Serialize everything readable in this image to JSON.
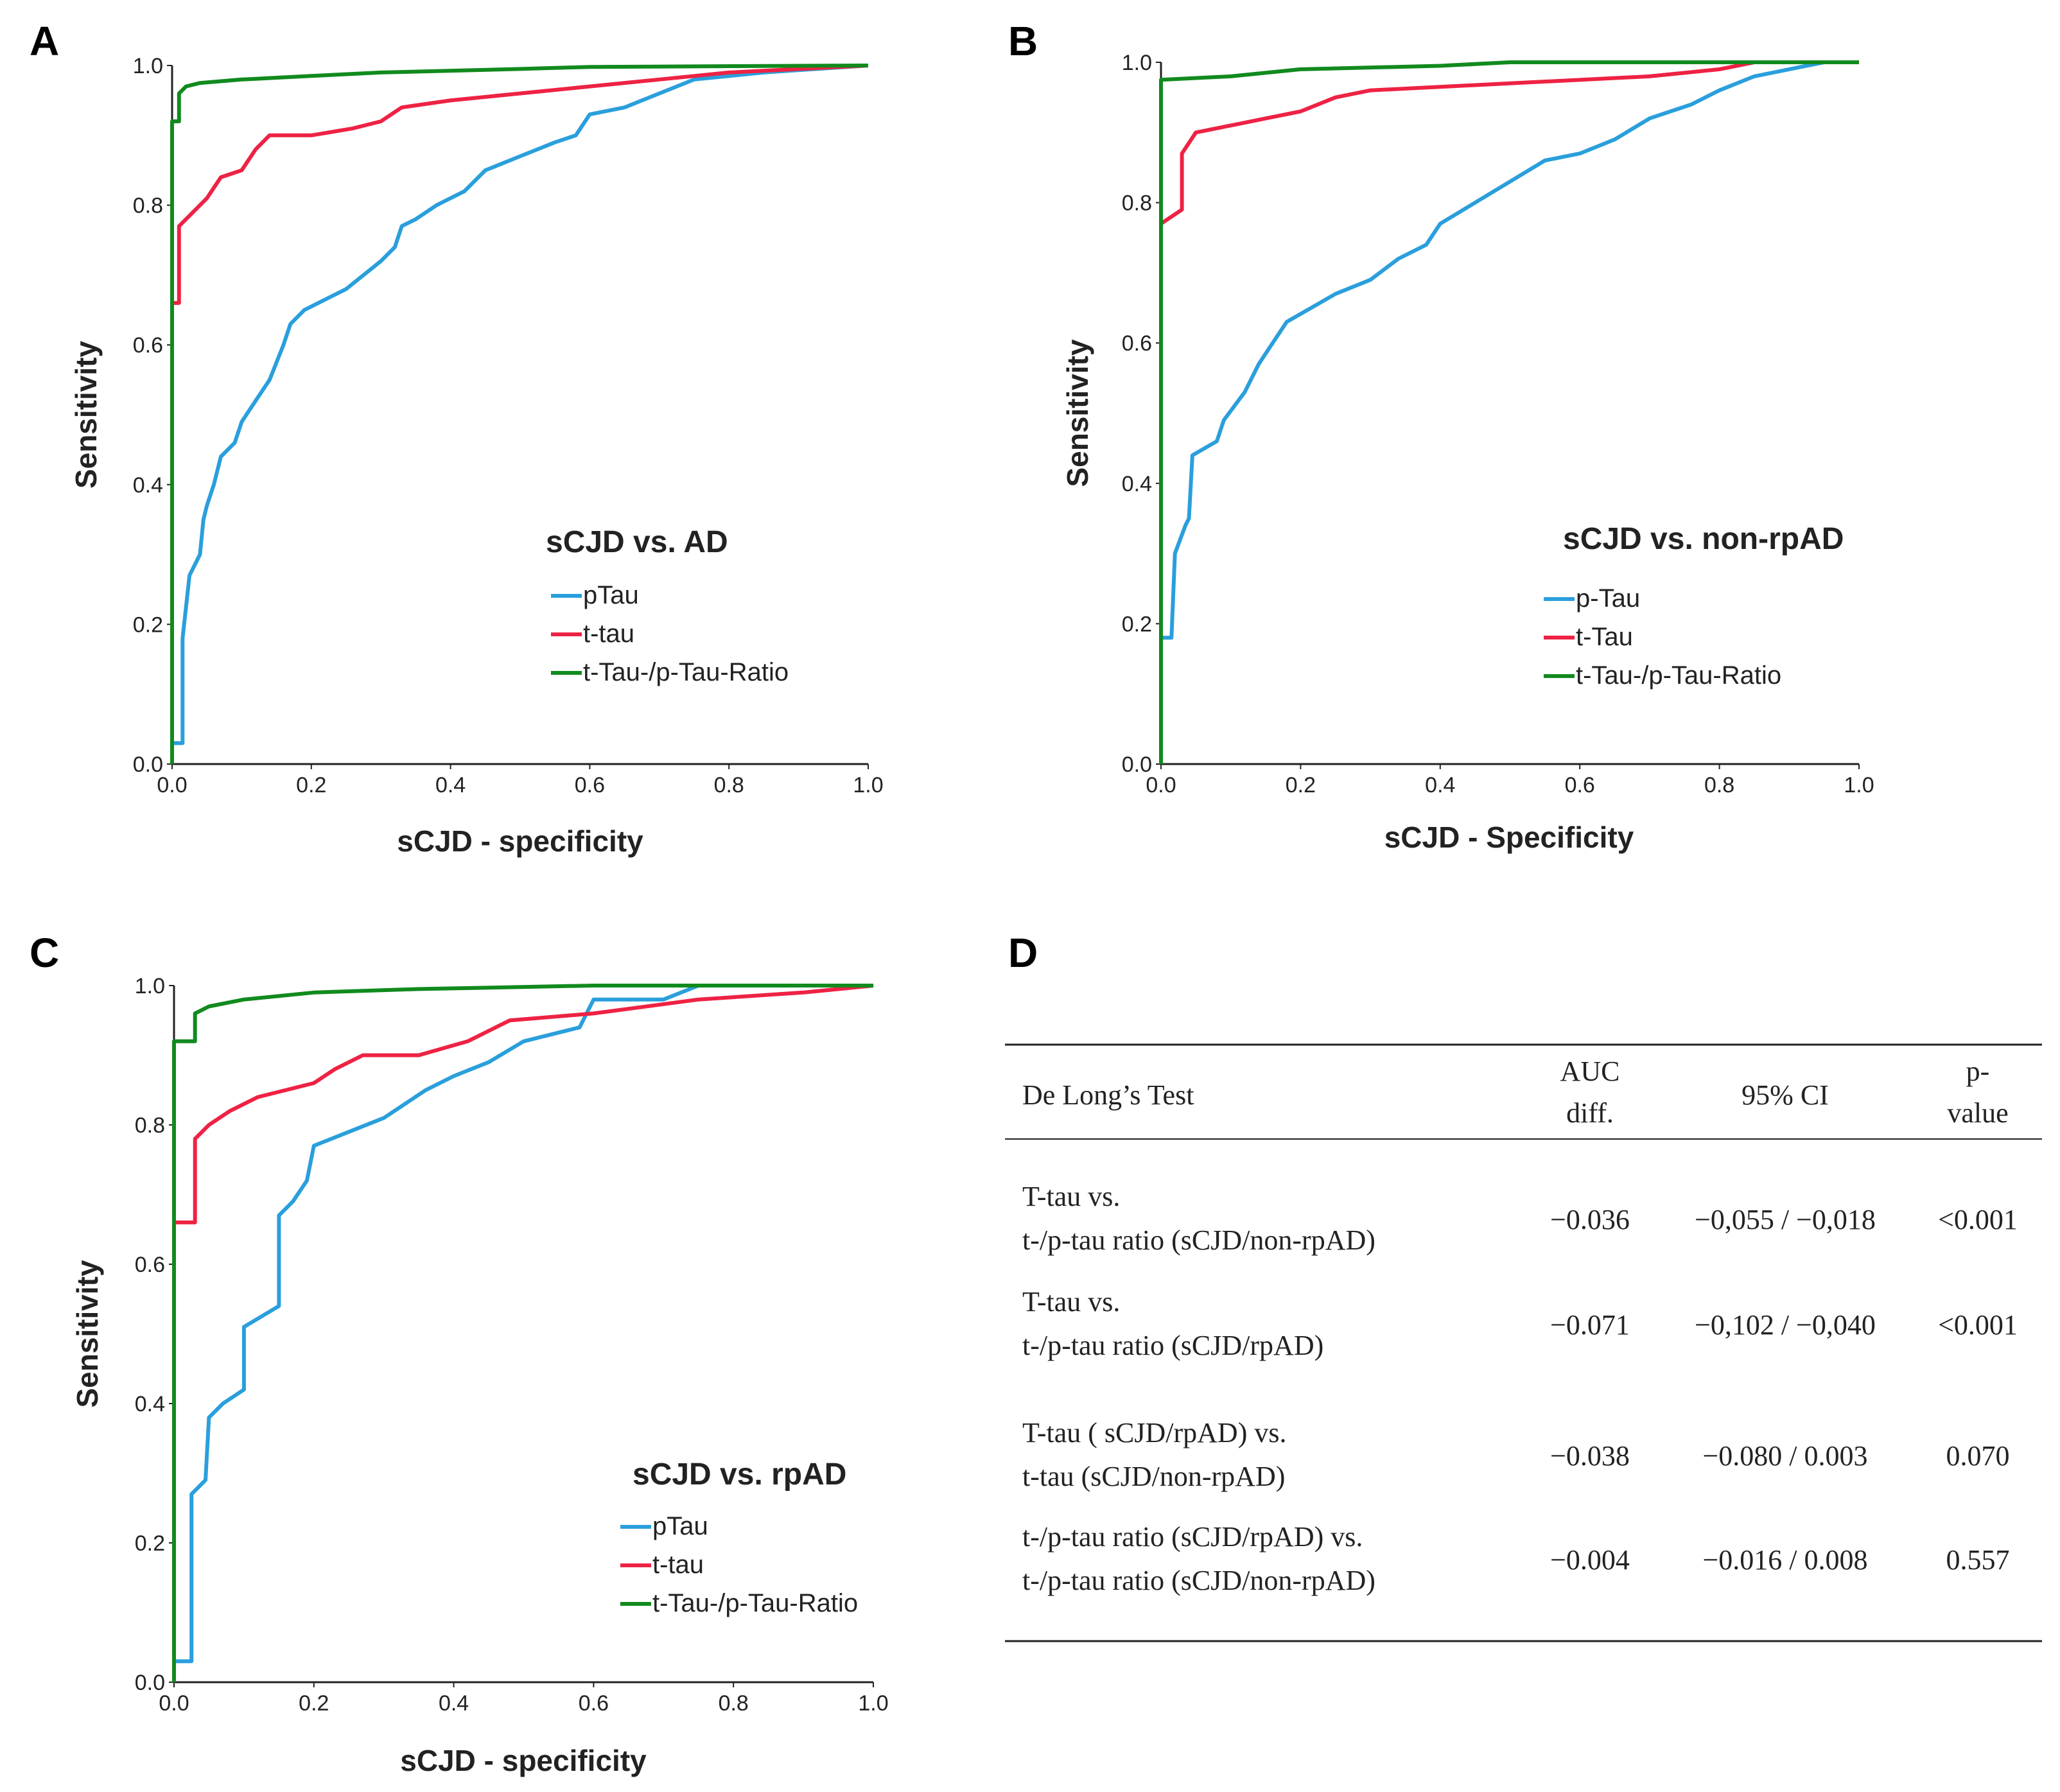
{
  "panels": [
    "A",
    "B",
    "C",
    "D"
  ],
  "series_colors": {
    "p_tau": "#2a9fdc",
    "t_tau": "#ee2244",
    "ratio": "#118a1e"
  },
  "chart_data": [
    {
      "type": "line",
      "panel": "A",
      "title": "sCJD vs. AD",
      "xlabel": "sCJD - specificity",
      "ylabel": "Sensitivity",
      "xlim": [
        0,
        1
      ],
      "ylim": [
        0,
        1
      ],
      "xticks": [
        "0.0",
        "0.2",
        "0.4",
        "0.6",
        "0.8",
        "1.0"
      ],
      "yticks": [
        "0.0",
        "0.2",
        "0.4",
        "0.6",
        "0.8",
        "1.0"
      ],
      "legend": [
        "pTau",
        "t-tau",
        "t-Tau-/p-Tau-Ratio"
      ],
      "series": [
        {
          "name": "pTau",
          "points": [
            [
              0,
              0
            ],
            [
              0,
              0.03
            ],
            [
              0.015,
              0.03
            ],
            [
              0.015,
              0.18
            ],
            [
              0.025,
              0.27
            ],
            [
              0.04,
              0.3
            ],
            [
              0.045,
              0.35
            ],
            [
              0.05,
              0.37
            ],
            [
              0.06,
              0.4
            ],
            [
              0.07,
              0.44
            ],
            [
              0.09,
              0.46
            ],
            [
              0.1,
              0.49
            ],
            [
              0.12,
              0.52
            ],
            [
              0.14,
              0.55
            ],
            [
              0.16,
              0.6
            ],
            [
              0.17,
              0.63
            ],
            [
              0.19,
              0.65
            ],
            [
              0.21,
              0.66
            ],
            [
              0.25,
              0.68
            ],
            [
              0.3,
              0.72
            ],
            [
              0.32,
              0.74
            ],
            [
              0.33,
              0.77
            ],
            [
              0.35,
              0.78
            ],
            [
              0.38,
              0.8
            ],
            [
              0.42,
              0.82
            ],
            [
              0.45,
              0.85
            ],
            [
              0.5,
              0.87
            ],
            [
              0.55,
              0.89
            ],
            [
              0.58,
              0.9
            ],
            [
              0.6,
              0.93
            ],
            [
              0.65,
              0.94
            ],
            [
              0.7,
              0.96
            ],
            [
              0.75,
              0.98
            ],
            [
              0.85,
              0.99
            ],
            [
              1,
              1
            ]
          ]
        },
        {
          "name": "t-tau",
          "points": [
            [
              0,
              0
            ],
            [
              0,
              0.66
            ],
            [
              0.01,
              0.66
            ],
            [
              0.01,
              0.77
            ],
            [
              0.03,
              0.79
            ],
            [
              0.05,
              0.81
            ],
            [
              0.07,
              0.84
            ],
            [
              0.1,
              0.85
            ],
            [
              0.12,
              0.88
            ],
            [
              0.14,
              0.9
            ],
            [
              0.2,
              0.9
            ],
            [
              0.26,
              0.91
            ],
            [
              0.3,
              0.92
            ],
            [
              0.33,
              0.94
            ],
            [
              0.4,
              0.95
            ],
            [
              0.5,
              0.96
            ],
            [
              0.6,
              0.97
            ],
            [
              0.7,
              0.98
            ],
            [
              0.8,
              0.99
            ],
            [
              1,
              1
            ]
          ]
        },
        {
          "name": "t-Tau-/p-Tau-Ratio",
          "points": [
            [
              0,
              0
            ],
            [
              0,
              0.92
            ],
            [
              0.01,
              0.92
            ],
            [
              0.01,
              0.96
            ],
            [
              0.02,
              0.97
            ],
            [
              0.04,
              0.975
            ],
            [
              0.1,
              0.98
            ],
            [
              0.2,
              0.985
            ],
            [
              0.3,
              0.99
            ],
            [
              0.5,
              0.995
            ],
            [
              0.6,
              0.998
            ],
            [
              1,
              1
            ]
          ]
        }
      ]
    },
    {
      "type": "line",
      "panel": "B",
      "title": "sCJD vs. non-rpAD",
      "xlabel": "sCJD - Specificity",
      "ylabel": "Sensitivity",
      "xlim": [
        0,
        1
      ],
      "ylim": [
        0,
        1
      ],
      "xticks": [
        "0.0",
        "0.2",
        "0.4",
        "0.6",
        "0.8",
        "1.0"
      ],
      "yticks": [
        "0.0",
        "0.2",
        "0.4",
        "0.6",
        "0.8",
        "1.0"
      ],
      "legend": [
        "p-Tau",
        "t-Tau",
        "t-Tau-/p-Tau-Ratio"
      ],
      "series": [
        {
          "name": "p-Tau",
          "points": [
            [
              0,
              0
            ],
            [
              0,
              0.18
            ],
            [
              0.015,
              0.18
            ],
            [
              0.02,
              0.3
            ],
            [
              0.035,
              0.34
            ],
            [
              0.04,
              0.35
            ],
            [
              0.045,
              0.44
            ],
            [
              0.08,
              0.46
            ],
            [
              0.09,
              0.49
            ],
            [
              0.12,
              0.53
            ],
            [
              0.14,
              0.57
            ],
            [
              0.16,
              0.6
            ],
            [
              0.18,
              0.63
            ],
            [
              0.25,
              0.67
            ],
            [
              0.3,
              0.69
            ],
            [
              0.34,
              0.72
            ],
            [
              0.38,
              0.74
            ],
            [
              0.4,
              0.77
            ],
            [
              0.45,
              0.8
            ],
            [
              0.5,
              0.83
            ],
            [
              0.55,
              0.86
            ],
            [
              0.6,
              0.87
            ],
            [
              0.65,
              0.89
            ],
            [
              0.7,
              0.92
            ],
            [
              0.76,
              0.94
            ],
            [
              0.8,
              0.96
            ],
            [
              0.85,
              0.98
            ],
            [
              0.9,
              0.99
            ],
            [
              0.95,
              1
            ],
            [
              1,
              1
            ]
          ]
        },
        {
          "name": "t-Tau",
          "points": [
            [
              0,
              0
            ],
            [
              0,
              0.77
            ],
            [
              0.03,
              0.79
            ],
            [
              0.03,
              0.87
            ],
            [
              0.05,
              0.9
            ],
            [
              0.1,
              0.91
            ],
            [
              0.15,
              0.92
            ],
            [
              0.2,
              0.93
            ],
            [
              0.25,
              0.95
            ],
            [
              0.3,
              0.96
            ],
            [
              0.5,
              0.97
            ],
            [
              0.7,
              0.98
            ],
            [
              0.8,
              0.99
            ],
            [
              0.85,
              1
            ],
            [
              1,
              1
            ]
          ]
        },
        {
          "name": "t-Tau-/p-Tau-Ratio",
          "points": [
            [
              0,
              0
            ],
            [
              0,
              0.975
            ],
            [
              0.1,
              0.98
            ],
            [
              0.2,
              0.99
            ],
            [
              0.4,
              0.995
            ],
            [
              0.5,
              1
            ],
            [
              1,
              1
            ]
          ]
        }
      ]
    },
    {
      "type": "line",
      "panel": "C",
      "title": "sCJD vs. rpAD",
      "xlabel": "sCJD - specificity",
      "ylabel": "Sensitivity",
      "xlim": [
        0,
        1
      ],
      "ylim": [
        0,
        1
      ],
      "xticks": [
        "0.0",
        "0.2",
        "0.4",
        "0.6",
        "0.8",
        "1.0"
      ],
      "yticks": [
        "0.0",
        "0.2",
        "0.4",
        "0.6",
        "0.8",
        "1.0"
      ],
      "legend": [
        "pTau",
        "t-tau",
        "t-Tau-/p-Tau-Ratio"
      ],
      "series": [
        {
          "name": "pTau",
          "points": [
            [
              0,
              0
            ],
            [
              0,
              0.03
            ],
            [
              0.025,
              0.03
            ],
            [
              0.025,
              0.27
            ],
            [
              0.045,
              0.29
            ],
            [
              0.05,
              0.38
            ],
            [
              0.07,
              0.4
            ],
            [
              0.1,
              0.42
            ],
            [
              0.1,
              0.51
            ],
            [
              0.15,
              0.54
            ],
            [
              0.15,
              0.67
            ],
            [
              0.17,
              0.69
            ],
            [
              0.19,
              0.72
            ],
            [
              0.2,
              0.77
            ],
            [
              0.25,
              0.79
            ],
            [
              0.3,
              0.81
            ],
            [
              0.33,
              0.83
            ],
            [
              0.36,
              0.85
            ],
            [
              0.4,
              0.87
            ],
            [
              0.45,
              0.89
            ],
            [
              0.5,
              0.92
            ],
            [
              0.58,
              0.94
            ],
            [
              0.6,
              0.98
            ],
            [
              0.7,
              0.98
            ],
            [
              0.75,
              1
            ],
            [
              1,
              1
            ]
          ]
        },
        {
          "name": "t-tau",
          "points": [
            [
              0,
              0
            ],
            [
              0,
              0.66
            ],
            [
              0.03,
              0.66
            ],
            [
              0.03,
              0.78
            ],
            [
              0.05,
              0.8
            ],
            [
              0.08,
              0.82
            ],
            [
              0.12,
              0.84
            ],
            [
              0.2,
              0.86
            ],
            [
              0.23,
              0.88
            ],
            [
              0.27,
              0.9
            ],
            [
              0.35,
              0.9
            ],
            [
              0.42,
              0.92
            ],
            [
              0.48,
              0.95
            ],
            [
              0.6,
              0.96
            ],
            [
              0.75,
              0.98
            ],
            [
              0.9,
              0.99
            ],
            [
              1,
              1
            ]
          ]
        },
        {
          "name": "t-Tau-/p-Tau-Ratio",
          "points": [
            [
              0,
              0
            ],
            [
              0,
              0.92
            ],
            [
              0.03,
              0.92
            ],
            [
              0.03,
              0.96
            ],
            [
              0.05,
              0.97
            ],
            [
              0.1,
              0.98
            ],
            [
              0.2,
              0.99
            ],
            [
              0.35,
              0.995
            ],
            [
              0.6,
              1
            ],
            [
              1,
              1
            ]
          ]
        }
      ]
    },
    {
      "type": "table",
      "panel": "D",
      "columns": [
        "De Long’s Test",
        "AUC diff.",
        "95% CI",
        "p-value"
      ],
      "header_lines": {
        "test": [
          "De Long’s Test"
        ],
        "auc": [
          "AUC",
          "diff."
        ],
        "ci": [
          "95% CI"
        ],
        "p": [
          "p-",
          "value"
        ]
      },
      "rows": [
        {
          "test": [
            "T-tau vs.",
            "t-/p-tau ratio (sCJD/non-rpAD)"
          ],
          "auc": "−0.036",
          "ci": "−0,055 / −0,018",
          "p": "<0.001"
        },
        {
          "test": [
            "T-tau vs.",
            "t-/p-tau ratio (sCJD/rpAD)"
          ],
          "auc": "−0.071",
          "ci": "−0,102 / −0,040",
          "p": "<0.001"
        },
        {
          "test": [
            "T-tau ( sCJD/rpAD) vs.",
            "t-tau (sCJD/non-rpAD)"
          ],
          "auc": "−0.038",
          "ci": "−0.080 / 0.003",
          "p": "0.070"
        },
        {
          "test": [
            "t-/p-tau ratio (sCJD/rpAD) vs.",
            "t-/p-tau ratio (sCJD/non-rpAD)"
          ],
          "auc": "−0.004",
          "ci": "−0.016 / 0.008",
          "p": "0.557"
        }
      ]
    }
  ]
}
